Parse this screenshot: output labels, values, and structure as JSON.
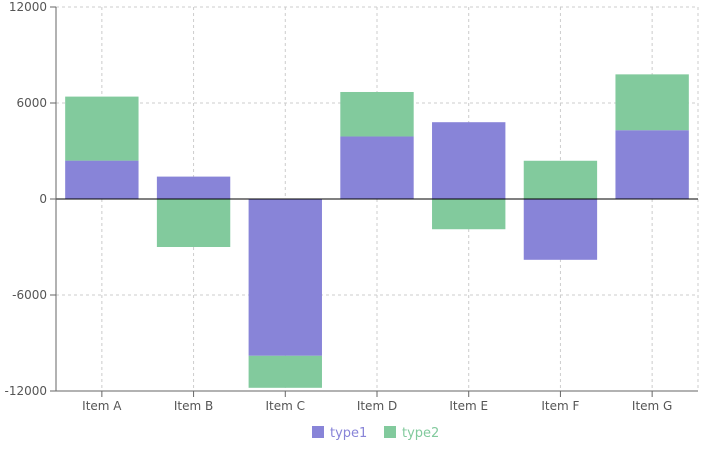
{
  "chart_data": {
    "type": "bar",
    "stacked": true,
    "categories": [
      "Item A",
      "Item B",
      "Item C",
      "Item D",
      "Item E",
      "Item F",
      "Item G"
    ],
    "series": [
      {
        "name": "type1",
        "color": "#8884d8",
        "values": [
          2400,
          1400,
          -9800,
          3908,
          4800,
          -3800,
          4300
        ]
      },
      {
        "name": "type2",
        "color": "#82ca9d",
        "values": [
          4000,
          -3000,
          -2000,
          2780,
          -1890,
          2390,
          3490
        ]
      }
    ],
    "ylim": [
      -12000,
      12000
    ],
    "yticks": [
      "12000",
      "6000",
      "0",
      "-6000",
      "-12000"
    ],
    "ytick_values": [
      12000,
      6000,
      0,
      -6000,
      -12000
    ],
    "grid": true,
    "legend_position": "bottom-center",
    "title": "",
    "xlabel": "",
    "ylabel": ""
  }
}
